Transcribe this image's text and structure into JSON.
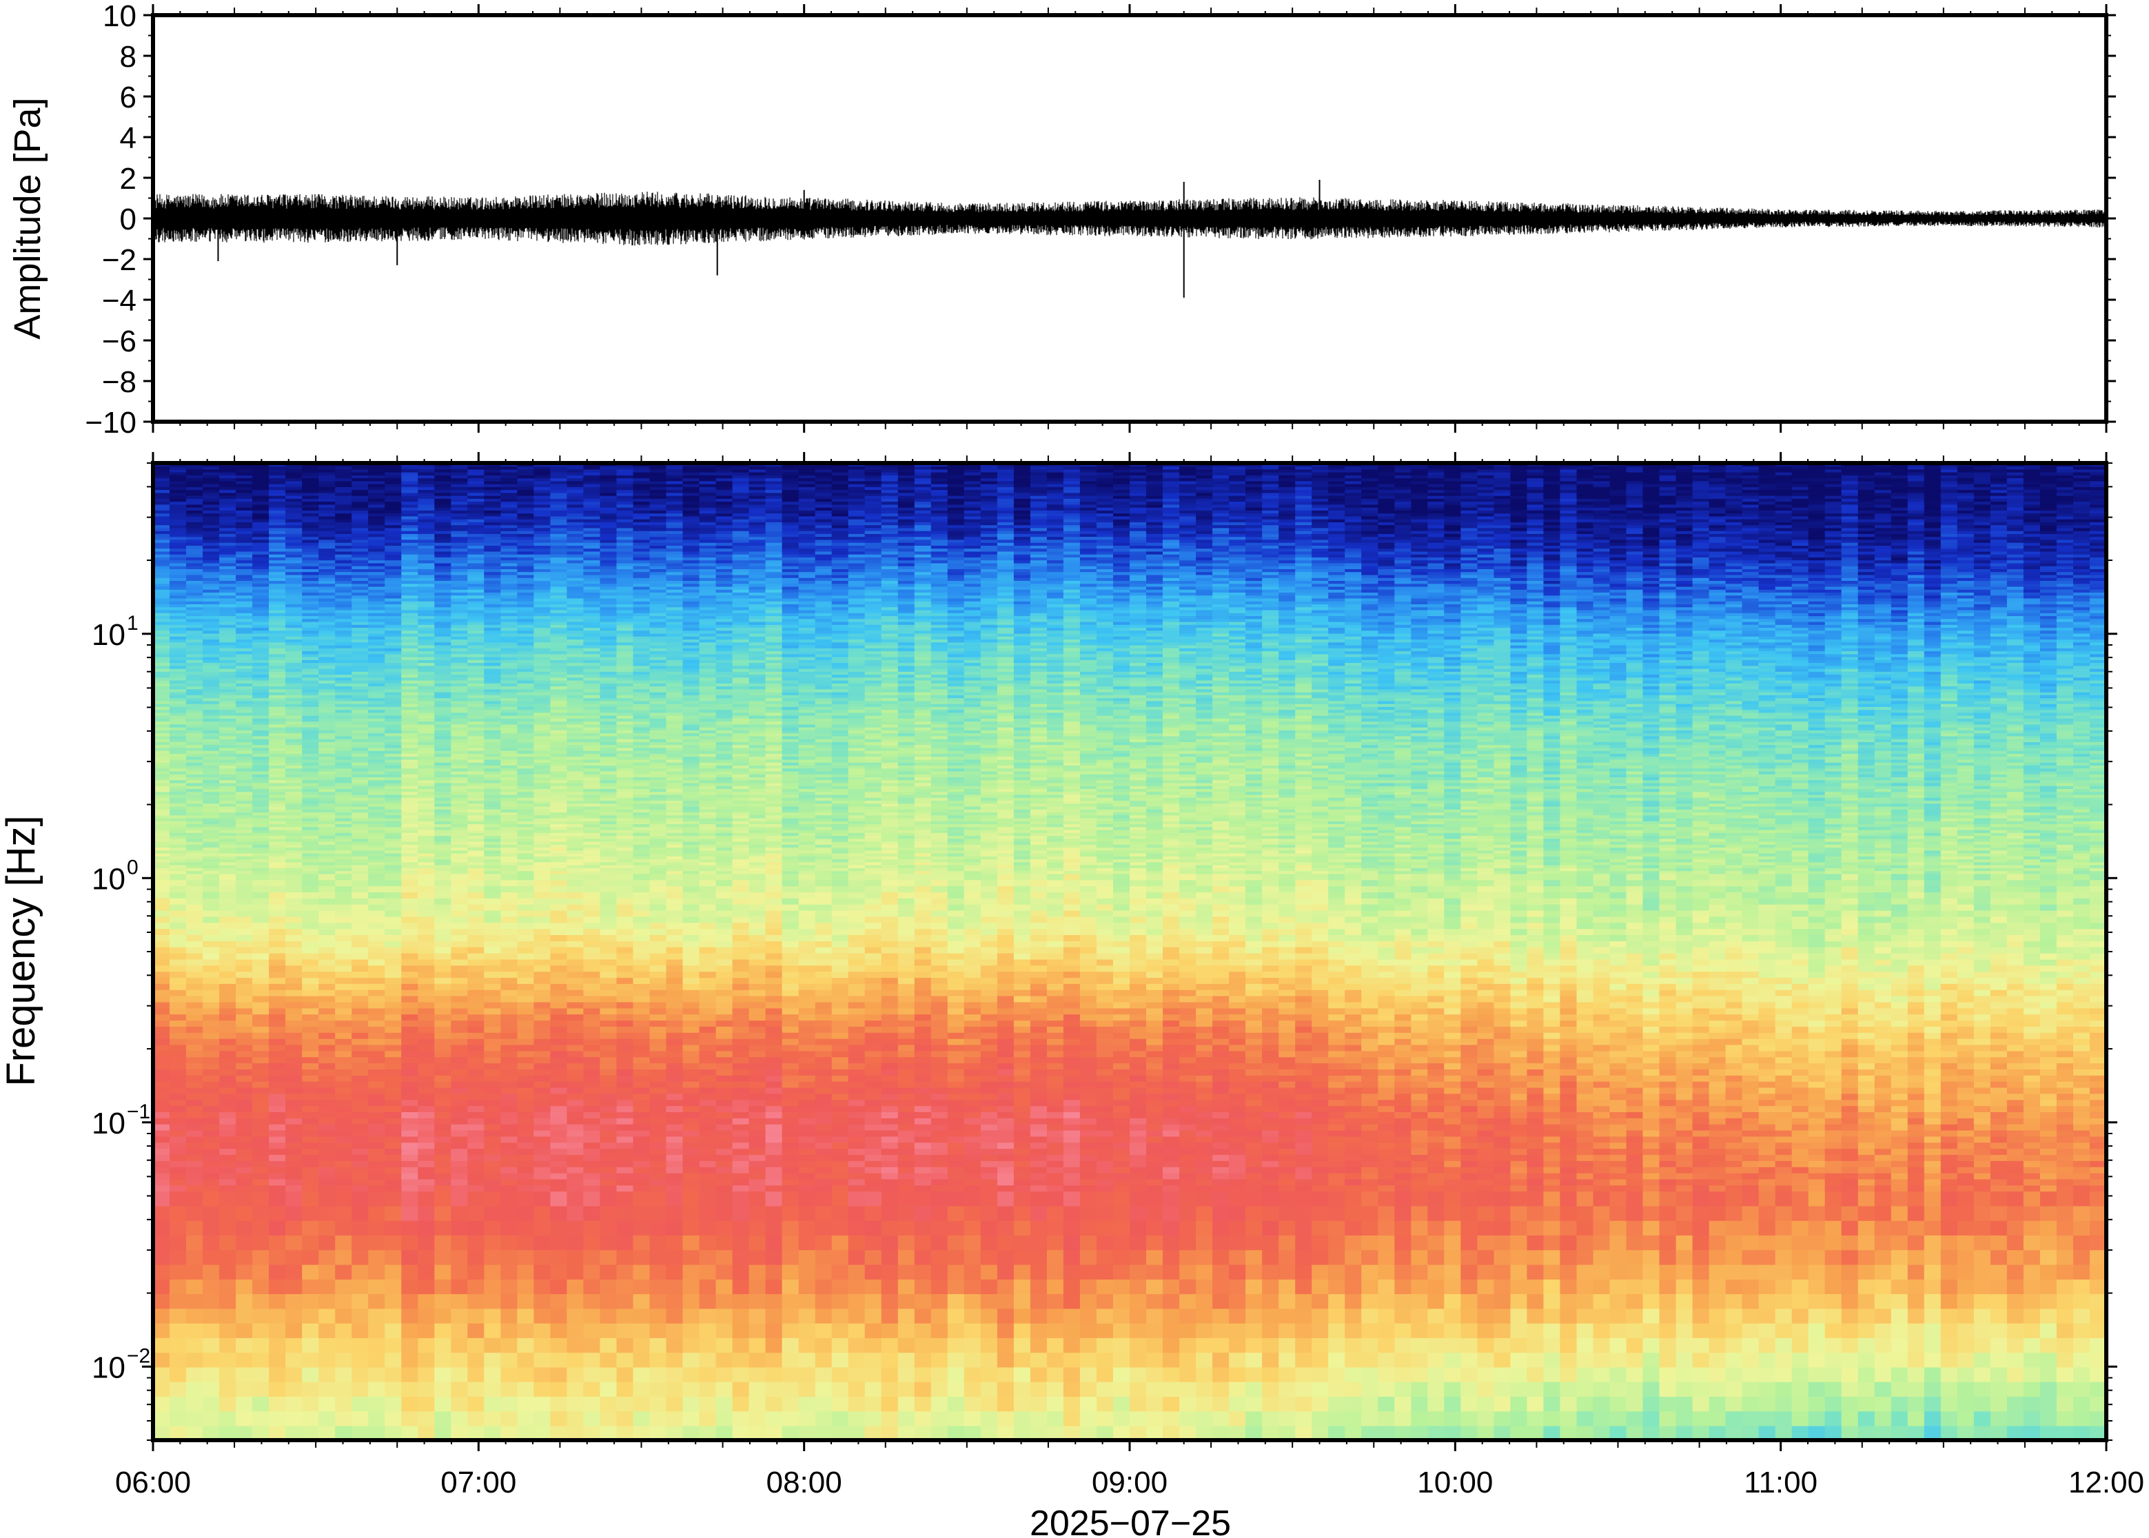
{
  "chart_data": [
    {
      "type": "line",
      "panel": "waveform",
      "ylabel": "Amplitude [Pa]",
      "ylim": [
        -10,
        10
      ],
      "yticks": [
        {
          "value": 10,
          "label": "10"
        },
        {
          "value": 8,
          "label": "8"
        },
        {
          "value": 6,
          "label": "6"
        },
        {
          "value": 4,
          "label": "4"
        },
        {
          "value": 2,
          "label": "2"
        },
        {
          "value": 0,
          "label": "0"
        },
        {
          "value": -2,
          "label": "−2"
        },
        {
          "value": -4,
          "label": "−4"
        },
        {
          "value": -6,
          "label": "−6"
        },
        {
          "value": -8,
          "label": "−8"
        },
        {
          "value": -10,
          "label": "−10"
        }
      ],
      "xlim": [
        "06:00",
        "12:00"
      ],
      "grid": false,
      "line_color": "#000000",
      "envelope": {
        "time": [
          "06:00",
          "06:30",
          "07:00",
          "07:30",
          "08:00",
          "08:30",
          "09:00",
          "09:30",
          "10:00",
          "10:30",
          "11:00",
          "11:30",
          "12:00"
        ],
        "half_range_pa": [
          0.8,
          0.8,
          0.7,
          0.9,
          0.7,
          0.5,
          0.6,
          0.7,
          0.6,
          0.45,
          0.3,
          0.25,
          0.3
        ]
      },
      "spikes": [
        {
          "time": "06:12",
          "value": -2.1
        },
        {
          "time": "06:45",
          "value": -2.3
        },
        {
          "time": "07:44",
          "value": -2.8
        },
        {
          "time": "08:00",
          "value": 1.4
        },
        {
          "time": "09:10",
          "value": -3.9
        },
        {
          "time": "09:10",
          "value": 1.8
        },
        {
          "time": "09:35",
          "value": 1.9
        }
      ]
    },
    {
      "type": "heatmap",
      "panel": "spectrogram",
      "ylabel": "Frequency [Hz]",
      "xlabel": "2025−07−25",
      "yscale": "log",
      "ylim": [
        0.005,
        50
      ],
      "yticks": [
        {
          "value": 0.01,
          "base": "10",
          "exp": "−2"
        },
        {
          "value": 0.1,
          "base": "10",
          "exp": "−1"
        },
        {
          "value": 1,
          "base": "10",
          "exp": "0"
        },
        {
          "value": 10,
          "base": "10",
          "exp": "1"
        }
      ],
      "xlim": [
        "06:00",
        "12:00"
      ],
      "xticks": [
        "06:00",
        "07:00",
        "08:00",
        "09:00",
        "10:00",
        "11:00",
        "12:00"
      ],
      "colormap": "rainbow (low power = dark blue, high power = pink/red)",
      "colormap_stops": [
        "#0b0b6b",
        "#1530c8",
        "#2a8cf0",
        "#3fc6f2",
        "#7ce4c2",
        "#b9f29a",
        "#eef59a",
        "#fbd56a",
        "#f8a450",
        "#f26a4e",
        "#ef5a5a",
        "#f88a9a"
      ],
      "power_profile": {
        "log10_freq": [
          -2.3,
          -2.0,
          -1.6,
          -1.3,
          -1.0,
          -0.6,
          -0.2,
          0.2,
          0.6,
          1.0,
          1.3,
          1.5,
          1.7
        ],
        "level_early": [
          0.52,
          0.62,
          0.8,
          0.9,
          0.92,
          0.78,
          0.55,
          0.47,
          0.42,
          0.3,
          0.15,
          0.06,
          0.02
        ],
        "level_late": [
          0.35,
          0.52,
          0.72,
          0.8,
          0.74,
          0.62,
          0.48,
          0.42,
          0.35,
          0.22,
          0.07,
          0.02,
          0.0
        ]
      }
    }
  ]
}
